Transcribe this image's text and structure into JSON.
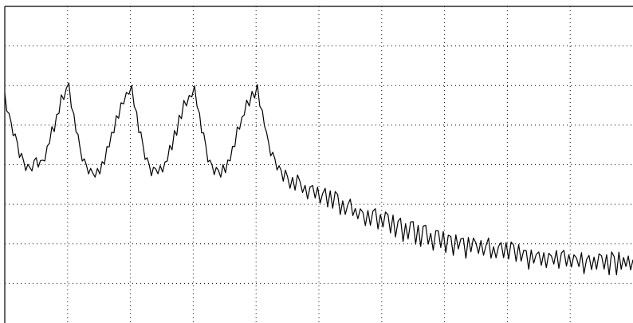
{
  "chart_data": {
    "type": "line",
    "title": "",
    "xlabel": "",
    "ylabel": "",
    "grid": true,
    "grid_style": "dotted",
    "xlim": [
      0,
      10
    ],
    "ylim": [
      0,
      8
    ],
    "x_gridlines": [
      1,
      2,
      3,
      4,
      5,
      6,
      7,
      8,
      9
    ],
    "y_gridlines": [
      1,
      2,
      3,
      4,
      5,
      6,
      7
    ],
    "line_color": "#000000",
    "grid_color": "#000000",
    "frame_color": "#000000",
    "series": [
      {
        "points": [
          [
            0.0,
            5.7
          ],
          [
            0.1,
            5.0
          ],
          [
            0.2,
            4.5
          ],
          [
            0.3,
            4.0
          ],
          [
            0.4,
            3.8
          ],
          [
            0.5,
            4.1
          ],
          [
            0.6,
            4.0
          ],
          [
            0.75,
            4.8
          ],
          [
            0.9,
            5.6
          ],
          [
            1.02,
            5.95
          ],
          [
            1.1,
            5.2
          ],
          [
            1.2,
            4.3
          ],
          [
            1.3,
            3.9
          ],
          [
            1.4,
            3.7
          ],
          [
            1.55,
            4.0
          ],
          [
            1.7,
            4.7
          ],
          [
            1.85,
            5.5
          ],
          [
            2.02,
            5.95
          ],
          [
            2.1,
            5.2
          ],
          [
            2.2,
            4.4
          ],
          [
            2.3,
            3.9
          ],
          [
            2.4,
            3.8
          ],
          [
            2.55,
            4.0
          ],
          [
            2.7,
            4.7
          ],
          [
            2.85,
            5.5
          ],
          [
            3.02,
            5.9
          ],
          [
            3.1,
            5.2
          ],
          [
            3.2,
            4.4
          ],
          [
            3.3,
            3.9
          ],
          [
            3.4,
            3.8
          ],
          [
            3.55,
            4.0
          ],
          [
            3.7,
            4.8
          ],
          [
            3.85,
            5.5
          ],
          [
            4.02,
            5.95
          ],
          [
            4.1,
            5.3
          ],
          [
            4.2,
            4.5
          ],
          [
            4.3,
            4.0
          ],
          [
            4.4,
            3.8
          ],
          [
            4.5,
            3.6
          ],
          [
            4.7,
            3.45
          ],
          [
            4.9,
            3.3
          ],
          [
            5.1,
            3.15
          ],
          [
            5.3,
            3.0
          ],
          [
            5.5,
            2.85
          ],
          [
            5.7,
            2.7
          ],
          [
            5.9,
            2.6
          ],
          [
            6.1,
            2.5
          ],
          [
            6.3,
            2.35
          ],
          [
            6.5,
            2.3
          ],
          [
            6.7,
            2.2
          ],
          [
            6.9,
            2.1
          ],
          [
            7.1,
            2.0
          ],
          [
            7.3,
            1.95
          ],
          [
            7.5,
            1.9
          ],
          [
            7.7,
            1.85
          ],
          [
            7.9,
            1.8
          ],
          [
            8.1,
            1.75
          ],
          [
            8.3,
            1.65
          ],
          [
            8.5,
            1.6
          ],
          [
            8.7,
            1.6
          ],
          [
            8.9,
            1.55
          ],
          [
            9.1,
            1.55
          ],
          [
            9.3,
            1.5
          ],
          [
            9.5,
            1.5
          ],
          [
            9.7,
            1.5
          ],
          [
            10.0,
            1.6
          ]
        ]
      }
    ]
  }
}
